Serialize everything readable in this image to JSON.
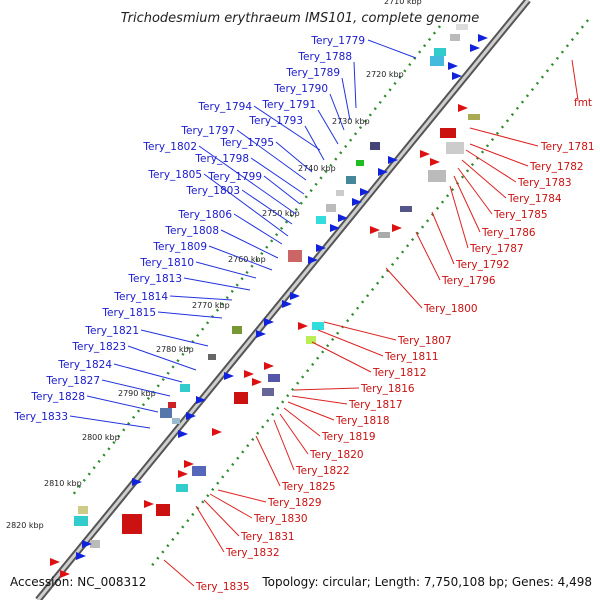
{
  "title": "Trichodesmium erythraeum IMS101, complete genome",
  "accession": "Accession: NC_008312",
  "topology": "Topology: circular; Length: 7,750,108 bp; Genes: 4,498",
  "colors": {
    "forward": "#1a1acc",
    "reverse": "#cc1111",
    "backbone": "#888888",
    "tick": "#2e8b2e"
  },
  "tick_labels": [
    "2710 kbp",
    "2720 kbp",
    "2730 kbp",
    "2740 kbp",
    "2750 kbp",
    "2760 kbp",
    "2770 kbp",
    "2780 kbp",
    "2790 kbp",
    "2800 kbp",
    "2810 kbp",
    "2820 kbp"
  ],
  "forward_genes": [
    "Tery_1779",
    "Tery_1788",
    "Tery_1789",
    "Tery_1790",
    "Tery_1791",
    "Tery_1793",
    "Tery_1794",
    "Tery_1795",
    "Tery_1797",
    "Tery_1798",
    "Tery_1799",
    "Tery_1802",
    "Tery_1803",
    "Tery_1805",
    "Tery_1806",
    "Tery_1808",
    "Tery_1809",
    "Tery_1810",
    "Tery_1813",
    "Tery_1814",
    "Tery_1815",
    "Tery_1821",
    "Tery_1823",
    "Tery_1824",
    "Tery_1827",
    "Tery_1828",
    "Tery_1833"
  ],
  "reverse_genes": [
    "fmt",
    "Tery_1781",
    "Tery_1782",
    "Tery_1783",
    "Tery_1784",
    "Tery_1785",
    "Tery_1786",
    "Tery_1787",
    "Tery_1792",
    "Tery_1796",
    "Tery_1800",
    "Tery_1807",
    "Tery_1811",
    "Tery_1812",
    "Tery_1816",
    "Tery_1817",
    "Tery_1818",
    "Tery_1819",
    "Tery_1820",
    "Tery_1822",
    "Tery_1825",
    "Tery_1829",
    "Tery_1830",
    "Tery_1831",
    "Tery_1832",
    "Tery_1835"
  ]
}
